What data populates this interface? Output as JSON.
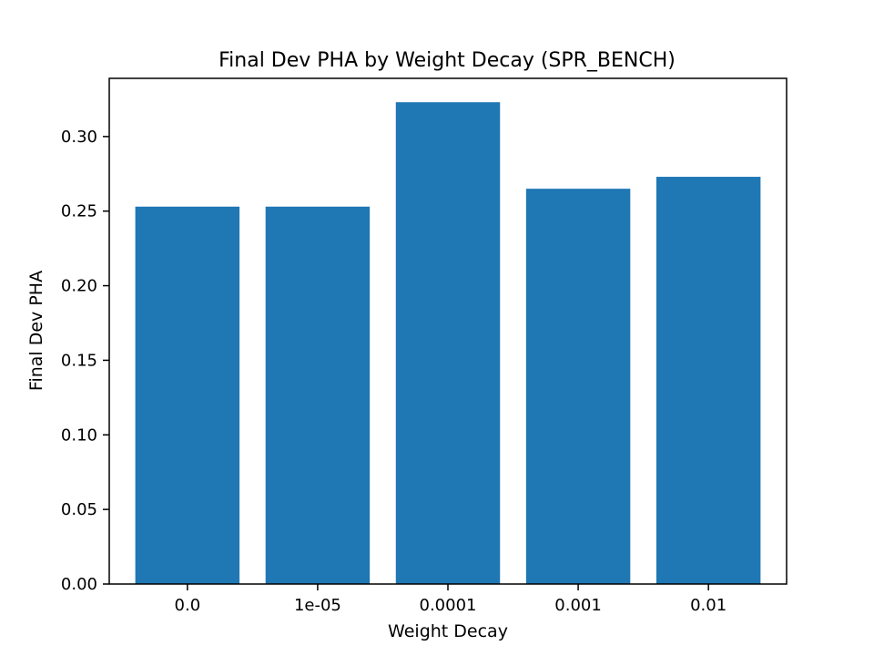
{
  "chart_data": {
    "type": "bar",
    "title": "Final Dev PHA by Weight Decay (SPR_BENCH)",
    "xlabel": "Weight Decay",
    "ylabel": "Final Dev PHA",
    "categories": [
      "0.0",
      "1e-05",
      "0.0001",
      "0.001",
      "0.01"
    ],
    "values": [
      0.253,
      0.253,
      0.323,
      0.265,
      0.273
    ],
    "ylim": [
      0,
      0.339
    ],
    "yticks": [
      "0.00",
      "0.05",
      "0.10",
      "0.15",
      "0.20",
      "0.25",
      "0.30"
    ],
    "ytick_values": [
      0,
      0.05,
      0.1,
      0.15,
      0.2,
      0.25,
      0.3
    ],
    "grid": false,
    "legend": "none",
    "bar_color": "#1f77b4"
  }
}
